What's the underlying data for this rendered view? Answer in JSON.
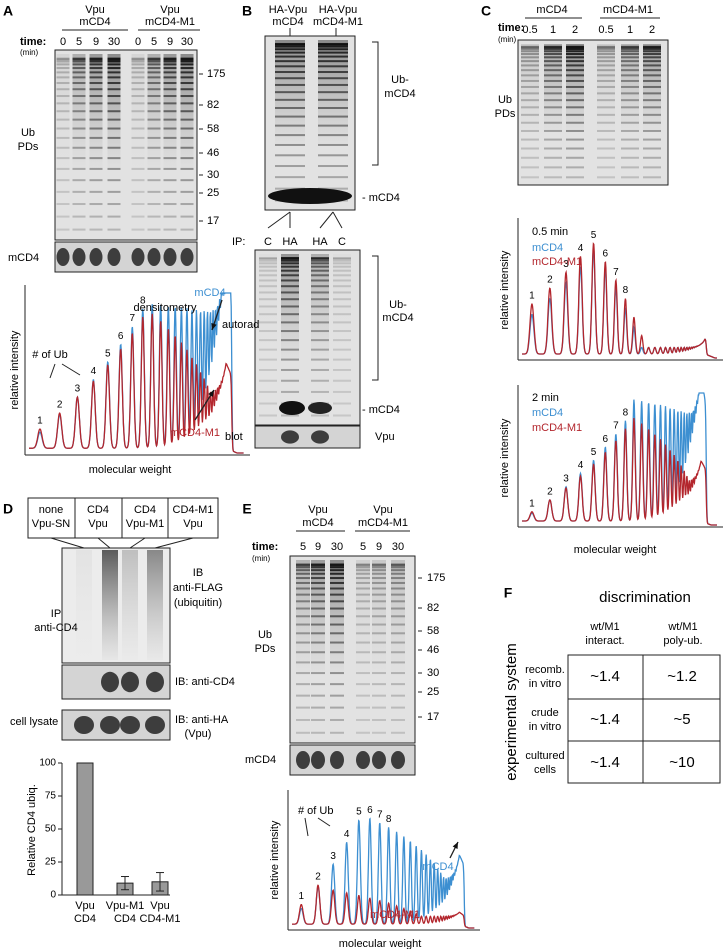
{
  "panel_a": {
    "label": "A",
    "groups": [
      [
        "Vpu",
        "mCD4"
      ],
      [
        "Vpu",
        "mCD4-M1"
      ]
    ],
    "time_label": "time:",
    "time_unit": "(min)",
    "times": [
      0,
      5,
      9,
      30,
      0,
      5,
      9,
      30
    ],
    "markers": [
      175,
      82,
      58,
      46,
      30,
      25,
      17
    ],
    "gel_label": [
      "Ub",
      "PDs"
    ],
    "strip_label": "mCD4",
    "trace": {
      "title": "densitometry",
      "ub_label": "# of Ub",
      "peaks": [
        1,
        2,
        3,
        4,
        5,
        6,
        7,
        8
      ],
      "series": [
        "mCD4",
        "mCD4-M1"
      ],
      "ylabel": "relative intensity",
      "xlabel": "molecular weight"
    }
  },
  "panel_b": {
    "label": "B",
    "groups": [
      [
        "HA-Vpu",
        "mCD4"
      ],
      [
        "HA-Vpu",
        "mCD4-M1"
      ]
    ],
    "gel_label": [
      "Ub-",
      "mCD4"
    ],
    "band_label": "- mCD4",
    "ip_label": "IP:",
    "ip_lanes": [
      "C",
      "HA",
      "HA",
      "C"
    ],
    "autorad": "autorad",
    "gel2_label": [
      "Ub-",
      "mCD4"
    ],
    "band2_label": "- mCD4",
    "blot": "blot",
    "blot_label": "Vpu"
  },
  "panel_c": {
    "label": "C",
    "groups": [
      "mCD4",
      "mCD4-M1"
    ],
    "time_label": "time:",
    "time_unit": "(min)",
    "times": [
      0.5,
      1,
      2,
      0.5,
      1,
      2
    ],
    "gel_label": [
      "Ub",
      "PDs"
    ],
    "traces": [
      {
        "title": "0.5 min",
        "legend": [
          "mCD4",
          "mCD4-M1"
        ],
        "peaks": [
          1,
          2,
          3,
          4,
          5,
          6,
          7,
          8
        ],
        "ylabel": "relative intensity"
      },
      {
        "title": "2 min",
        "legend": [
          "mCD4",
          "mCD4-M1"
        ],
        "peaks": [
          1,
          2,
          3,
          4,
          5,
          6,
          7,
          8
        ],
        "ylabel": "relative intensity"
      }
    ],
    "xlabel": "molecular weight"
  },
  "panel_d": {
    "label": "D",
    "conditions": [
      [
        "none",
        "Vpu-SN"
      ],
      [
        "CD4",
        "Vpu"
      ],
      [
        "CD4",
        "Vpu-M1"
      ],
      [
        "CD4-M1",
        "Vpu"
      ]
    ],
    "ip": [
      "IP",
      "anti-CD4"
    ],
    "ib1": [
      "IB",
      "anti-FLAG",
      "(ubiquitin)"
    ],
    "ib2": "IB: anti-CD4",
    "lysate": "cell lysate",
    "ib3": [
      "IB: anti-HA",
      "(Vpu)"
    ]
  },
  "chart_data": {
    "type": "bar",
    "ylabel": "Relative CD4 ubiq.",
    "categories": [
      [
        "Vpu",
        "CD4"
      ],
      [
        "Vpu-M1",
        "CD4"
      ],
      [
        "Vpu",
        "CD4-M1"
      ]
    ],
    "values": [
      100,
      9,
      10
    ],
    "errors": [
      null,
      5,
      7
    ],
    "color": "#999999",
    "ylim": [
      0,
      100
    ],
    "yticks": [
      0,
      25,
      50,
      75,
      100
    ]
  },
  "panel_e": {
    "label": "E",
    "groups": [
      [
        "Vpu",
        "mCD4"
      ],
      [
        "Vpu",
        "mCD4-M1"
      ]
    ],
    "time_label": "time:",
    "time_unit": "(min)",
    "times": [
      5,
      9,
      30,
      5,
      9,
      30
    ],
    "markers": [
      175,
      82,
      58,
      46,
      30,
      25,
      17
    ],
    "gel_label": [
      "Ub",
      "PDs"
    ],
    "strip_label": "mCD4",
    "trace": {
      "ub_label": "# of Ub",
      "peaks": [
        1,
        2,
        3,
        4,
        5,
        6,
        7,
        8
      ],
      "series": [
        "mCD4",
        "mCD4-M1"
      ],
      "ylabel": "relative intensity",
      "xlabel": "molecular weight"
    }
  },
  "panel_f": {
    "label": "F",
    "title": "discrimination",
    "columns": [
      [
        "wt/M1",
        "interact."
      ],
      [
        "wt/M1",
        "poly-ub."
      ]
    ],
    "rows": [
      {
        "label": [
          "recomb.",
          "in vitro"
        ],
        "values": [
          "~1.4",
          "~1.2"
        ]
      },
      {
        "label": [
          "crude",
          "in vitro"
        ],
        "values": [
          "~1.4",
          "~5"
        ]
      },
      {
        "label": [
          "cultured",
          "cells"
        ],
        "values": [
          "~1.4",
          "~10"
        ]
      }
    ],
    "axis": "experimental system"
  }
}
